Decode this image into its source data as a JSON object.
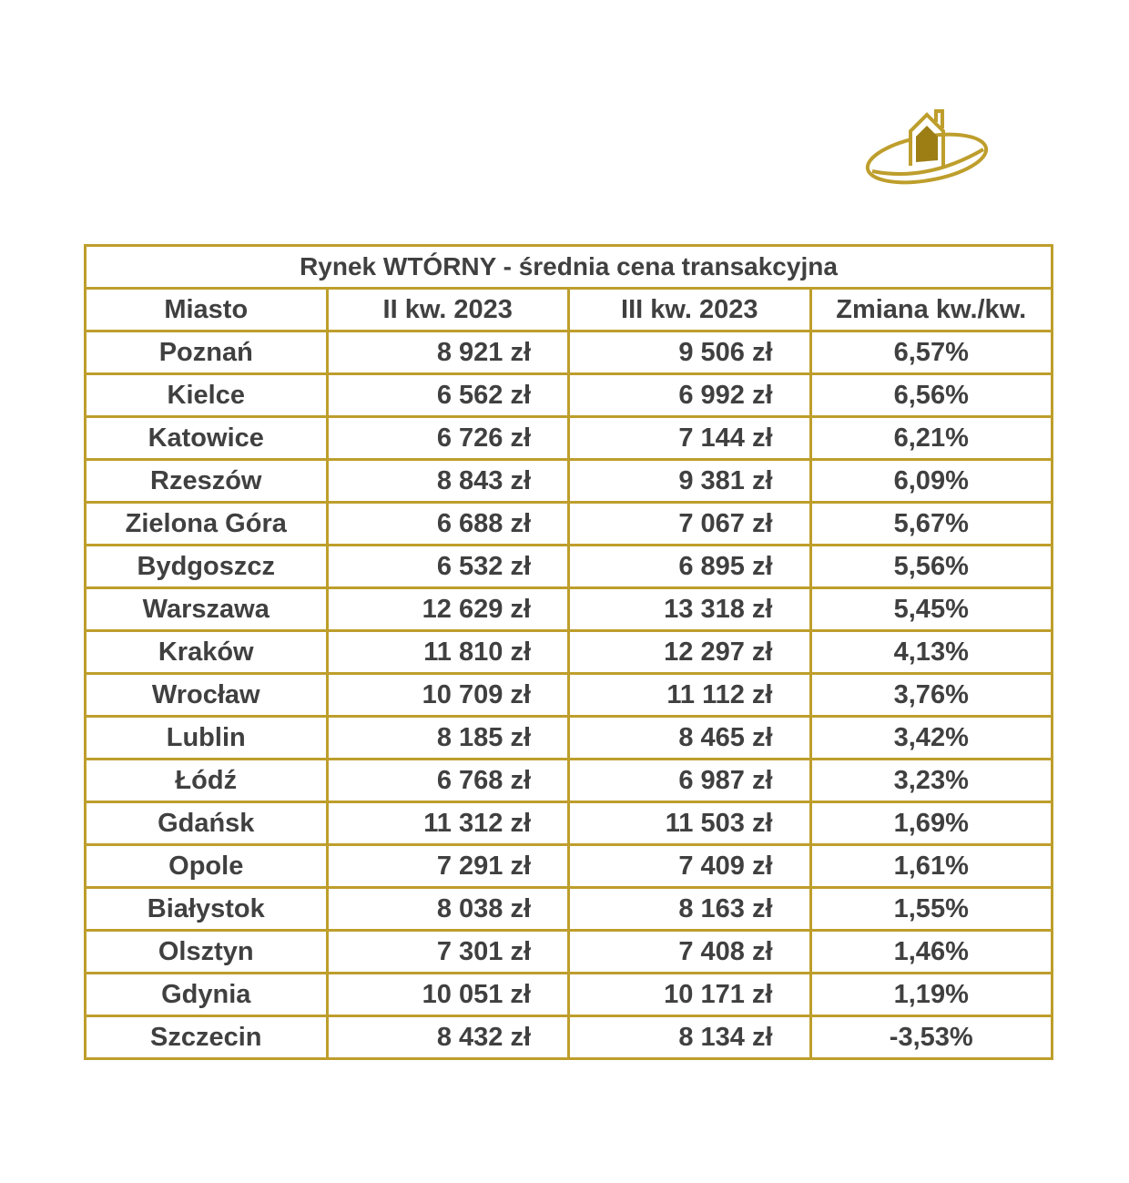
{
  "colors": {
    "accent": "#BE9E2C",
    "text": "#404040"
  },
  "logo_icon": "house-ring-icon",
  "table": {
    "title": "Rynek WTÓRNY - średnia cena transakcyjna",
    "columns": [
      "Miasto",
      "II kw. 2023",
      "III kw. 2023",
      "Zmiana kw./kw."
    ],
    "rows": [
      [
        "Poznań",
        "8 921 zł",
        "9 506 zł",
        "6,57%"
      ],
      [
        "Kielce",
        "6 562 zł",
        "6 992 zł",
        "6,56%"
      ],
      [
        "Katowice",
        "6 726 zł",
        "7 144 zł",
        "6,21%"
      ],
      [
        "Rzeszów",
        "8 843 zł",
        "9 381 zł",
        "6,09%"
      ],
      [
        "Zielona Góra",
        "6 688 zł",
        "7 067 zł",
        "5,67%"
      ],
      [
        "Bydgoszcz",
        "6 532 zł",
        "6 895 zł",
        "5,56%"
      ],
      [
        "Warszawa",
        "12 629 zł",
        "13 318 zł",
        "5,45%"
      ],
      [
        "Kraków",
        "11 810 zł",
        "12 297 zł",
        "4,13%"
      ],
      [
        "Wrocław",
        "10 709 zł",
        "11 112 zł",
        "3,76%"
      ],
      [
        "Lublin",
        "8 185 zł",
        "8 465 zł",
        "3,42%"
      ],
      [
        "Łódź",
        "6 768 zł",
        "6 987 zł",
        "3,23%"
      ],
      [
        "Gdańsk",
        "11 312 zł",
        "11 503 zł",
        "1,69%"
      ],
      [
        "Opole",
        "7 291 zł",
        "7 409 zł",
        "1,61%"
      ],
      [
        "Białystok",
        "8 038 zł",
        "8 163 zł",
        "1,55%"
      ],
      [
        "Olsztyn",
        "7 301 zł",
        "7 408 zł",
        "1,46%"
      ],
      [
        "Gdynia",
        "10 051 zł",
        "10 171 zł",
        "1,19%"
      ],
      [
        "Szczecin",
        "8 432 zł",
        "8 134 zł",
        "-3,53%"
      ]
    ]
  }
}
